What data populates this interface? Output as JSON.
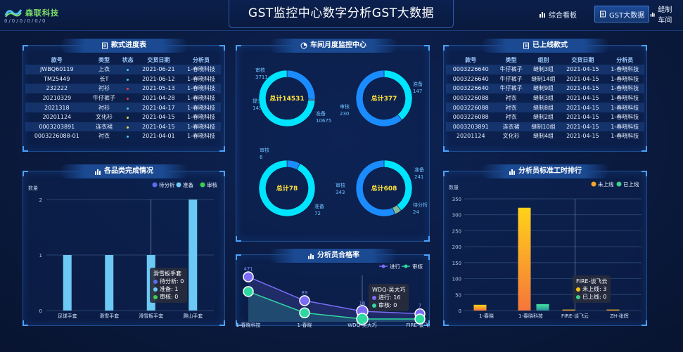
{
  "header": {
    "title": "GST监控中心数字分析GST大数据",
    "logo_brand": "森联科技",
    "logo_sub": "0/0/0/0/0/0",
    "nav": [
      {
        "label": "综合看板",
        "icon": "bar-chart-icon",
        "active": false
      },
      {
        "label": "GST大数据",
        "icon": "document-icon",
        "active": true
      },
      {
        "label": "缝制车间",
        "icon": "bar-chart-icon",
        "active": false
      }
    ]
  },
  "progress_panel": {
    "title": "款式进度表",
    "columns": [
      "款号",
      "类型",
      "状态",
      "交货日期",
      "分析员"
    ],
    "rows": [
      {
        "style_no": "JWBQ60119",
        "type": "上衣",
        "status_color": "#3ecbff",
        "date": "2021-06-21",
        "analyst": "1-春晓科技"
      },
      {
        "style_no": "TM25449",
        "type": "长T",
        "status_color": "#3ecbff",
        "date": "2021-06-12",
        "analyst": "1-春晓科技"
      },
      {
        "style_no": "232222",
        "type": "衬衫",
        "status_color": "#ff3b3b",
        "date": "2021-05-13",
        "analyst": "1-春晓科技"
      },
      {
        "style_no": "20210329",
        "type": "牛仔裤子",
        "status_color": "#ff3b3b",
        "date": "2021-04-28",
        "analyst": "1-春晓科技"
      },
      {
        "style_no": "2021318",
        "type": "衬衫",
        "status_color": "#3ecbff",
        "date": "2021-04-17",
        "analyst": "1-春晓科技"
      },
      {
        "style_no": "20201124",
        "type": "文化衫",
        "status_color": "#e6e63a",
        "date": "2021-04-15",
        "analyst": "1-春晓科技"
      },
      {
        "style_no": "0003203891",
        "type": "连衣裙",
        "status_color": "#e6e63a",
        "date": "2021-04-15",
        "analyst": "1-春晓科技"
      },
      {
        "style_no": "0003226088-01",
        "type": "衬衣",
        "status_color": "#3ecbff",
        "date": "2021-04-01",
        "analyst": "1-春晓科技"
      }
    ]
  },
  "online_panel": {
    "title": "已上线款式",
    "columns": [
      "款号",
      "类型",
      "组别",
      "交货日期",
      "分析员"
    ],
    "rows": [
      {
        "style_no": "0003226640",
        "type": "牛仔裤子",
        "group": "缝制3组",
        "date": "2021-04-15",
        "analyst": "1-春晓科技"
      },
      {
        "style_no": "0003226640",
        "type": "牛仔裤子",
        "group": "缝制14组",
        "date": "2021-04-15",
        "analyst": "1-春晓科技"
      },
      {
        "style_no": "0003226640",
        "type": "牛仔裤子",
        "group": "缝制9组",
        "date": "2021-04-15",
        "analyst": "1-春晓科技"
      },
      {
        "style_no": "0003226088",
        "type": "衬衣",
        "group": "缝制3组",
        "date": "2021-04-15",
        "analyst": "1-春晓科技"
      },
      {
        "style_no": "0003226088",
        "type": "衬衣",
        "group": "缝制8组",
        "date": "2021-04-15",
        "analyst": "1-春晓科技"
      },
      {
        "style_no": "0003226088",
        "type": "衬衣",
        "group": "缝制2组",
        "date": "2021-04-15",
        "analyst": "1-春晓科技"
      },
      {
        "style_no": "0003203891",
        "type": "连衣裙",
        "group": "缝制10组",
        "date": "2021-04-15",
        "analyst": "1-春晓科技"
      },
      {
        "style_no": "20201124",
        "type": "文化衫",
        "group": "缝制4组",
        "date": "2021-04-15",
        "analyst": "1-春晓科技"
      }
    ]
  },
  "monitor_panel": {
    "title": "车间月度监控中心",
    "donuts": [
      {
        "center": "总计14531",
        "segments": [
          {
            "label": "审核",
            "value": 3711,
            "color": "#1a8cff"
          },
          {
            "label": "提交",
            "value": 145,
            "color": "#66ccff"
          },
          {
            "label": "准备",
            "value": 10675,
            "color": "#00e5ff"
          }
        ]
      },
      {
        "center": "总计377",
        "segments": [
          {
            "label": "准备",
            "value": 147,
            "color": "#00e5ff"
          },
          {
            "label": "审核",
            "value": 230,
            "color": "#1a8cff"
          }
        ]
      },
      {
        "center": "总计78",
        "segments": [
          {
            "label": "审核",
            "value": 6,
            "color": "#1a8cff"
          },
          {
            "label": "准备",
            "value": 72,
            "color": "#00e5ff"
          }
        ]
      },
      {
        "center": "总计608",
        "segments": [
          {
            "label": "准备",
            "value": 241,
            "color": "#00e5ff"
          },
          {
            "label": "待分析",
            "value": 24,
            "color": "#7fb99a"
          },
          {
            "label": "审核",
            "value": 343,
            "color": "#1a8cff"
          }
        ]
      }
    ]
  },
  "category_panel": {
    "title": "各品类完成情况",
    "legend": [
      {
        "label": "待分析",
        "color": "#5b6cf0"
      },
      {
        "label": "准备",
        "color": "#6cc8f4"
      },
      {
        "label": "审核",
        "color": "#3ccf4e"
      }
    ],
    "ylabel": "数量",
    "tooltip": {
      "title": "滑雪板手套",
      "lines": [
        {
          "label": "待分析: 0",
          "color": "#5b6cf0"
        },
        {
          "label": "准备: 1",
          "color": "#6cc8f4"
        },
        {
          "label": "审核: 0",
          "color": "#3ccf4e"
        }
      ]
    }
  },
  "pass_panel": {
    "title": "分析员合格率",
    "legend": [
      {
        "label": "进行",
        "color": "#7b6cf6"
      },
      {
        "label": "审核",
        "color": "#2fd8a0"
      }
    ],
    "tooltip": {
      "title": "WDQ-吴大巧",
      "lines": [
        {
          "label": "进行: 16",
          "color": "#7b6cf6"
        },
        {
          "label": "审核: 0",
          "color": "#2fd8a0"
        }
      ]
    }
  },
  "hours_panel": {
    "title": "分析员标准工时排行",
    "legend": [
      {
        "label": "未上线",
        "color": "#f5a623"
      },
      {
        "label": "已上线",
        "color": "#3ccf8e"
      }
    ],
    "ylabel": "数量",
    "tooltip": {
      "title": "FIRE-谈飞云",
      "lines": [
        {
          "label": "未上线: 3",
          "color": "#f5c518"
        },
        {
          "label": "已上线: 0",
          "color": "#3ccf8e"
        }
      ]
    }
  },
  "chart_data": [
    {
      "type": "bar",
      "title": "各品类完成情况",
      "ylabel": "数量",
      "categories": [
        "足球手套",
        "滑雪手套",
        "滑雪板手套",
        "爬山手套"
      ],
      "series": [
        {
          "name": "待分析",
          "values": [
            0,
            0,
            0,
            0
          ]
        },
        {
          "name": "准备",
          "values": [
            1,
            1,
            1,
            2
          ]
        },
        {
          "name": "审核",
          "values": [
            0,
            0,
            0,
            0
          ]
        }
      ],
      "ylim": [
        0,
        2
      ],
      "yticks": [
        0,
        1,
        2
      ]
    },
    {
      "type": "line",
      "title": "分析员合格率",
      "categories": [
        "1-春晓科技",
        "1-春晓",
        "WDQ-吴大巧",
        "FIRE-谈飞云"
      ],
      "series": [
        {
          "name": "进行",
          "values": [
            471,
            89,
            16,
            7
          ]
        },
        {
          "name": "审核",
          "values": [
            200,
            10,
            0,
            0
          ]
        }
      ]
    },
    {
      "type": "bar",
      "title": "分析员标准工时排行",
      "ylabel": "数量",
      "categories": [
        "1-春晓",
        "1-春晓科技",
        "FIRE-谈飞云",
        "ZH-张辉"
      ],
      "series": [
        {
          "name": "未上线",
          "values": [
            18,
            322,
            3,
            3
          ]
        },
        {
          "name": "已上线",
          "values": [
            0,
            20,
            0,
            0
          ]
        }
      ],
      "ylim": [
        0,
        350
      ],
      "yticks": [
        0,
        50,
        100,
        150,
        200,
        250,
        300,
        350
      ]
    }
  ]
}
